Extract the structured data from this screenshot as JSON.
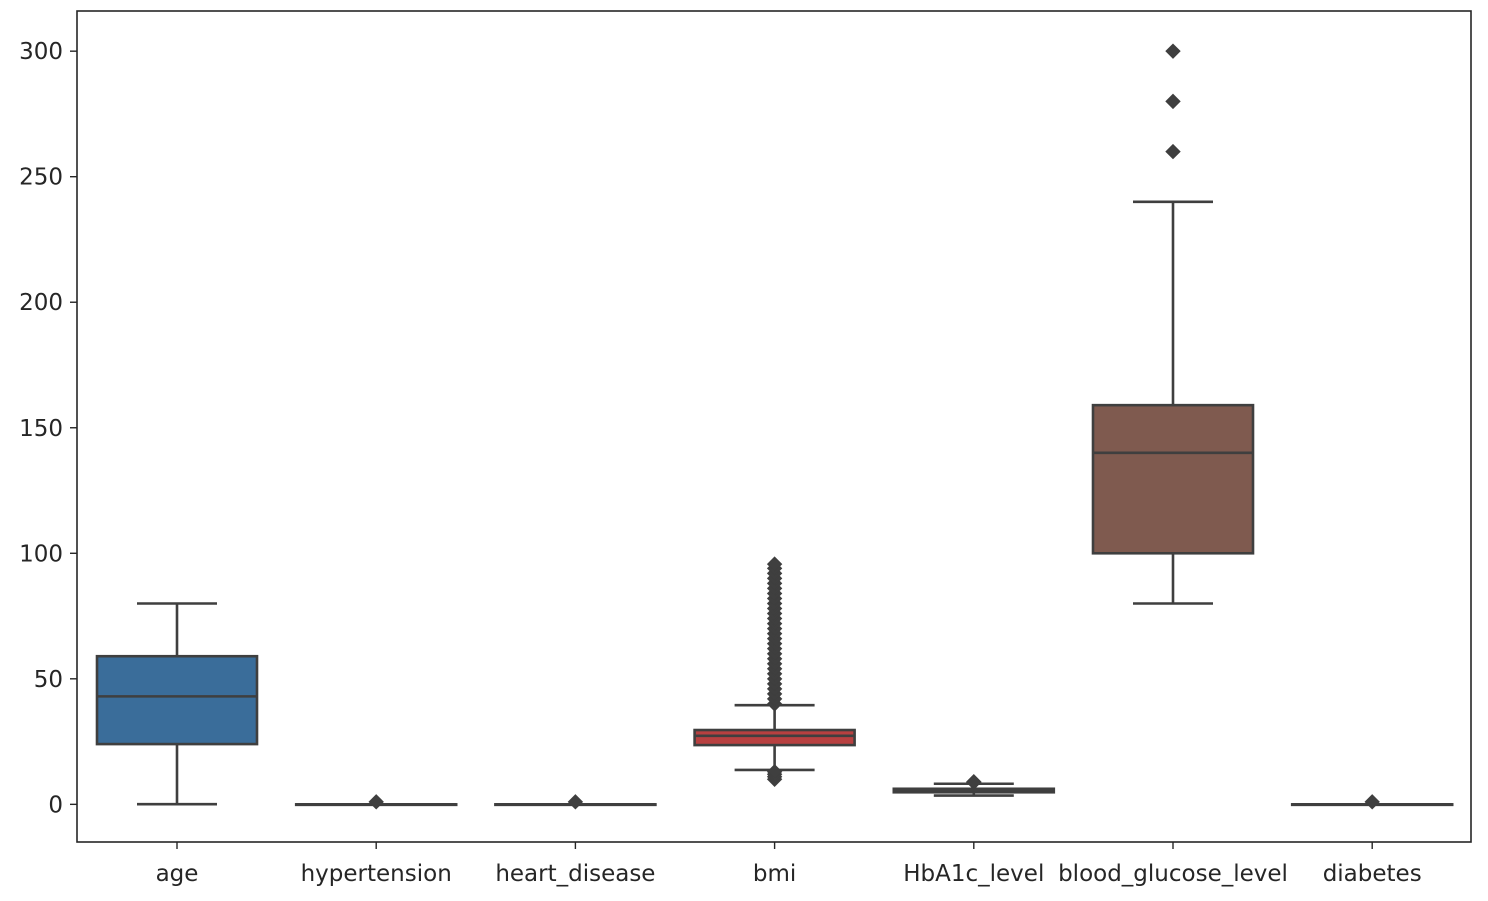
{
  "chart_data": {
    "type": "boxplot",
    "title": "",
    "xlabel": "",
    "ylabel": "",
    "ylim": [
      -15,
      316
    ],
    "yticks": [
      0,
      50,
      100,
      150,
      200,
      250,
      300
    ],
    "ytick_labels": [
      "0",
      "50",
      "100",
      "150",
      "200",
      "250",
      "300"
    ],
    "grid": false,
    "legend": "none",
    "categories": [
      "age",
      "hypertension",
      "heart_disease",
      "bmi",
      "HbA1c_level",
      "blood_glucose_level",
      "diabetes"
    ],
    "boxes": [
      {
        "name": "age",
        "color": "#3a6d9a",
        "whislo": 0.08,
        "q1": 24,
        "med": 43,
        "q3": 59,
        "whishi": 80,
        "fliers": []
      },
      {
        "name": "hypertension",
        "color": "#e1812c",
        "whislo": 0,
        "q1": 0,
        "med": 0,
        "q3": 0,
        "whishi": 0,
        "fliers": [
          1
        ]
      },
      {
        "name": "heart_disease",
        "color": "#3a923a",
        "whislo": 0,
        "q1": 0,
        "med": 0,
        "q3": 0,
        "whishi": 0,
        "fliers": [
          1
        ]
      },
      {
        "name": "bmi",
        "color": "#b84040",
        "whislo": 13.7,
        "q1": 23.6,
        "med": 27.3,
        "q3": 29.6,
        "whishi": 39.5,
        "fliers": [
          10.0,
          11.0,
          12.0,
          13.0,
          40,
          42,
          44,
          46,
          48,
          50,
          52,
          54,
          56,
          58,
          60,
          62,
          64,
          66,
          68,
          70,
          72,
          74,
          76,
          78,
          80,
          82,
          84,
          86,
          88,
          90,
          92,
          94,
          95.7
        ]
      },
      {
        "name": "HbA1c_level",
        "color": "#7f7f7f",
        "whislo": 3.5,
        "q1": 4.8,
        "med": 5.8,
        "q3": 6.2,
        "whishi": 8.2,
        "fliers": [
          8.8,
          9.0
        ]
      },
      {
        "name": "blood_glucose_level",
        "color": "#7f5a4f",
        "whislo": 80,
        "q1": 100,
        "med": 140,
        "q3": 159,
        "whishi": 240,
        "fliers": [
          260,
          280,
          300
        ]
      },
      {
        "name": "diabetes",
        "color": "#d684bd",
        "whislo": 0,
        "q1": 0,
        "med": 0,
        "q3": 0,
        "whishi": 0,
        "fliers": [
          1
        ]
      }
    ]
  }
}
